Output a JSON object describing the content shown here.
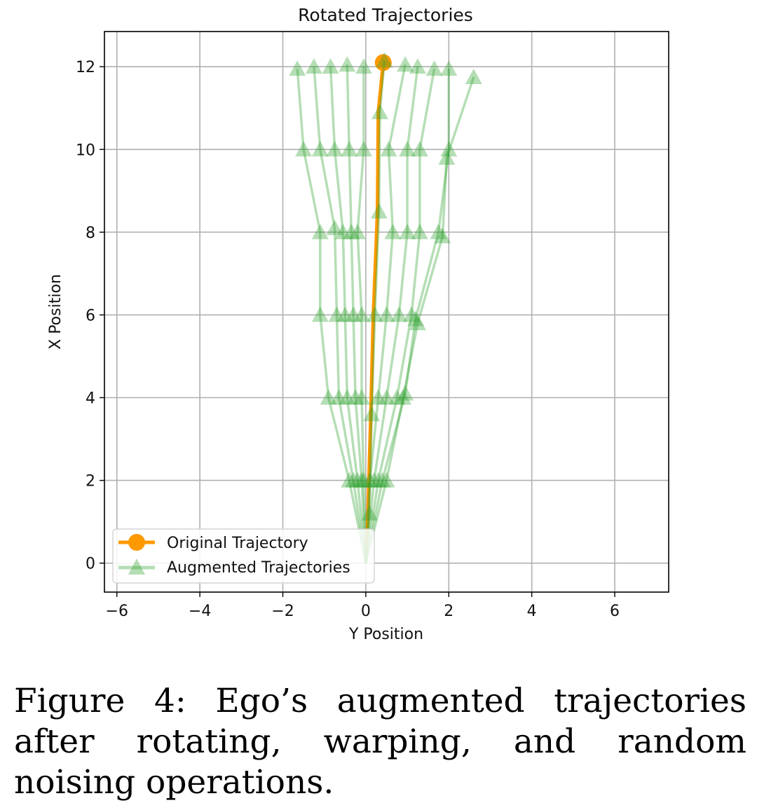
{
  "chart_data": {
    "type": "line",
    "title": "Rotated Trajectories",
    "xlabel": "Y Position",
    "ylabel": "X Position",
    "xlim": [
      -6.3,
      7.3
    ],
    "ylim": [
      -0.7,
      12.85
    ],
    "xticks": [
      -6,
      -4,
      -2,
      0,
      2,
      4,
      6
    ],
    "xtick_labels": [
      "−6",
      "−4",
      "−2",
      "0",
      "2",
      "4",
      "6"
    ],
    "yticks": [
      0,
      2,
      4,
      6,
      8,
      10,
      12
    ],
    "ytick_labels": [
      "0",
      "2",
      "4",
      "6",
      "8",
      "10",
      "12"
    ],
    "grid": true,
    "legend": {
      "position": "bottom-left",
      "entries": [
        "Original Trajectory",
        "Augmented Trajectories"
      ]
    },
    "series": [
      {
        "name": "Original Trajectory",
        "marker": "circle",
        "color": "#ff9900",
        "points": [
          [
            0.0,
            0.0
          ],
          [
            0.05,
            1.2
          ],
          [
            0.12,
            3.6
          ],
          [
            0.18,
            6.0
          ],
          [
            0.28,
            8.5
          ],
          [
            0.3,
            10.9
          ],
          [
            0.42,
            12.1
          ]
        ]
      },
      {
        "name": "Augmented Trajectories",
        "marker": "triangle",
        "color": "#2ca02c",
        "points": [
          [
            0.0,
            0.0
          ],
          [
            0.09,
            1.2
          ],
          [
            0.14,
            3.6
          ],
          [
            0.22,
            6.0
          ],
          [
            0.32,
            8.5
          ],
          [
            0.34,
            10.9
          ],
          [
            0.45,
            12.15
          ]
        ]
      },
      {
        "name": "Augmented Trajectories",
        "marker": "triangle",
        "color": "#2ca02c",
        "points": [
          [
            0.0,
            0.0
          ],
          [
            -0.4,
            2.0
          ],
          [
            -0.9,
            4.0
          ],
          [
            -1.1,
            6.0
          ],
          [
            -1.1,
            8.0
          ],
          [
            -1.5,
            10.0
          ],
          [
            -1.65,
            11.95
          ]
        ]
      },
      {
        "name": "Augmented Trajectories",
        "marker": "triangle",
        "color": "#2ca02c",
        "points": [
          [
            0.0,
            0.0
          ],
          [
            -0.3,
            2.0
          ],
          [
            -0.65,
            4.0
          ],
          [
            -0.7,
            6.0
          ],
          [
            -0.75,
            8.1
          ],
          [
            -1.1,
            10.0
          ],
          [
            -1.25,
            12.0
          ]
        ]
      },
      {
        "name": "Augmented Trajectories",
        "marker": "triangle",
        "color": "#2ca02c",
        "points": [
          [
            0.0,
            0.0
          ],
          [
            -0.2,
            2.0
          ],
          [
            -0.45,
            4.0
          ],
          [
            -0.5,
            6.0
          ],
          [
            -0.55,
            8.0
          ],
          [
            -0.75,
            10.0
          ],
          [
            -0.85,
            12.0
          ]
        ]
      },
      {
        "name": "Augmented Trajectories",
        "marker": "triangle",
        "color": "#2ca02c",
        "points": [
          [
            0.0,
            0.0
          ],
          [
            -0.1,
            2.0
          ],
          [
            -0.25,
            4.0
          ],
          [
            -0.3,
            6.0
          ],
          [
            -0.35,
            8.0
          ],
          [
            -0.4,
            10.0
          ],
          [
            -0.45,
            12.05
          ]
        ]
      },
      {
        "name": "Augmented Trajectories",
        "marker": "triangle",
        "color": "#2ca02c",
        "points": [
          [
            0.0,
            0.0
          ],
          [
            -0.05,
            2.0
          ],
          [
            -0.1,
            4.0
          ],
          [
            -0.1,
            6.0
          ],
          [
            -0.2,
            8.0
          ],
          [
            -0.05,
            10.0
          ],
          [
            -0.05,
            12.0
          ]
        ]
      },
      {
        "name": "Augmented Trajectories",
        "marker": "triangle",
        "color": "#2ca02c",
        "points": [
          [
            0.0,
            0.0
          ],
          [
            0.1,
            2.0
          ],
          [
            0.3,
            4.0
          ],
          [
            0.5,
            6.0
          ],
          [
            0.65,
            8.0
          ],
          [
            0.55,
            10.0
          ],
          [
            0.95,
            12.05
          ]
        ]
      },
      {
        "name": "Augmented Trajectories",
        "marker": "triangle",
        "color": "#2ca02c",
        "points": [
          [
            0.0,
            0.0
          ],
          [
            0.2,
            2.0
          ],
          [
            0.5,
            4.0
          ],
          [
            0.8,
            6.0
          ],
          [
            1.0,
            8.0
          ],
          [
            1.0,
            10.0
          ],
          [
            1.25,
            12.0
          ]
        ]
      },
      {
        "name": "Augmented Trajectories",
        "marker": "triangle",
        "color": "#2ca02c",
        "points": [
          [
            0.0,
            0.0
          ],
          [
            0.3,
            2.0
          ],
          [
            0.75,
            4.0
          ],
          [
            1.1,
            6.0
          ],
          [
            1.3,
            8.0
          ],
          [
            1.3,
            10.0
          ],
          [
            1.65,
            11.95
          ]
        ]
      },
      {
        "name": "Augmented Trajectories",
        "marker": "triangle",
        "color": "#2ca02c",
        "points": [
          [
            0.0,
            0.0
          ],
          [
            0.4,
            2.0
          ],
          [
            0.95,
            4.1
          ],
          [
            1.2,
            5.9
          ],
          [
            1.75,
            8.0
          ],
          [
            2.0,
            10.0
          ],
          [
            2.0,
            11.95
          ]
        ]
      },
      {
        "name": "Augmented Trajectories",
        "marker": "triangle",
        "color": "#2ca02c",
        "points": [
          [
            0.0,
            0.0
          ],
          [
            0.5,
            2.0
          ],
          [
            0.9,
            4.0
          ],
          [
            1.25,
            5.8
          ],
          [
            1.85,
            7.9
          ],
          [
            1.95,
            9.8
          ],
          [
            2.6,
            11.75
          ]
        ]
      }
    ]
  },
  "caption": "Figure 4: Ego’s augmented trajectories after rotating, warping, and random noising operations."
}
